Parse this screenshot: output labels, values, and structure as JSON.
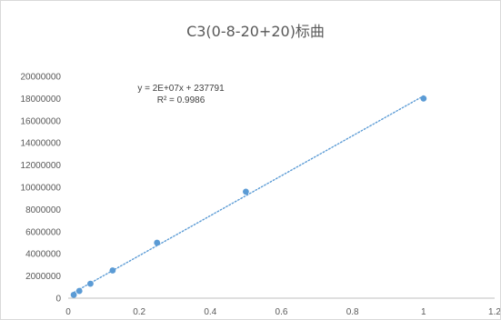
{
  "chart_data": {
    "type": "scatter",
    "title": "C3(0-8-20+20)标曲",
    "xlabel": "",
    "ylabel": "",
    "xlim": [
      0,
      1.2
    ],
    "ylim": [
      0,
      20000000
    ],
    "x_ticks": [
      0,
      0.2,
      0.4,
      0.6,
      0.8,
      1,
      1.2
    ],
    "x_tick_labels": [
      "0",
      "0.2",
      "0.4",
      "0.6",
      "0.8",
      "1",
      "1.2"
    ],
    "y_ticks": [
      0,
      2000000,
      4000000,
      6000000,
      8000000,
      10000000,
      12000000,
      14000000,
      16000000,
      18000000,
      20000000
    ],
    "y_tick_labels": [
      "0",
      "2000000",
      "4000000",
      "6000000",
      "8000000",
      "10000000",
      "12000000",
      "14000000",
      "16000000",
      "18000000",
      "20000000"
    ],
    "grid": false,
    "series": [
      {
        "x": [
          0.015625,
          0.03125,
          0.0625,
          0.125,
          0.25,
          0.5,
          1
        ],
        "y": [
          300000,
          650000,
          1300000,
          2500000,
          5000000,
          9600000,
          18000000
        ],
        "color": "#5b9bd5"
      }
    ],
    "trendline": {
      "type": "linear",
      "slope": 18000000,
      "intercept": 237791,
      "x_range": [
        0.015625,
        1
      ],
      "color": "#5b9bd5",
      "style": "dotted",
      "equation": "y = 2E+07x + 237791",
      "r_squared": "R² = 0.9986"
    }
  }
}
